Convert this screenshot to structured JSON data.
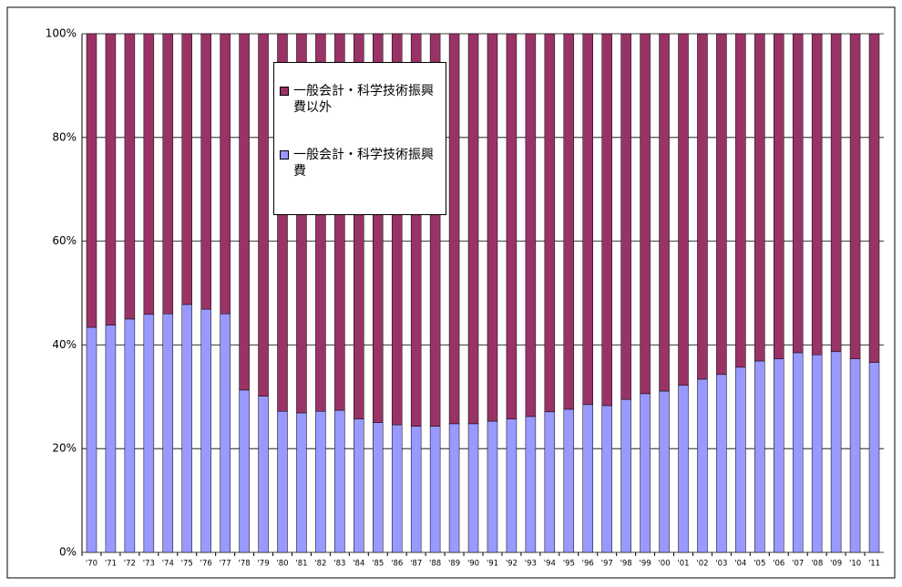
{
  "chart_data": {
    "type": "stacked-bar",
    "categories": [
      "'70",
      "'71",
      "'72",
      "'73",
      "'74",
      "'75",
      "'76",
      "'77",
      "'78",
      "'79",
      "'80",
      "'81",
      "'82",
      "'83",
      "'84",
      "'85",
      "'86",
      "'87",
      "'88",
      "'89",
      "'90",
      "'91",
      "'92",
      "'93",
      "'94",
      "'95",
      "'96",
      "'97",
      "'98",
      "'99",
      "'00",
      "'01",
      "'02",
      "'03",
      "'04",
      "'05",
      "'06",
      "'07",
      "'08",
      "'09",
      "'10",
      "'11"
    ],
    "series": [
      {
        "name": "一般会計・科学技術振興費",
        "color": "#9999ff",
        "values": [
          43.4,
          43.8,
          45.0,
          45.9,
          46.0,
          47.8,
          46.9,
          46.0,
          31.3,
          30.1,
          27.2,
          26.9,
          27.2,
          27.4,
          25.7,
          25.0,
          24.6,
          24.3,
          24.3,
          24.8,
          24.8,
          25.3,
          25.7,
          26.2,
          27.1,
          27.6,
          28.5,
          28.3,
          29.5,
          30.6,
          31.1,
          32.2,
          33.4,
          34.3,
          35.7,
          36.9,
          37.3,
          38.5,
          38.1,
          38.7,
          37.3,
          36.6
        ]
      },
      {
        "name": "一般会計・科学技術振興費以外",
        "color": "#993366",
        "values": [
          56.6,
          56.2,
          55.0,
          54.1,
          54.0,
          52.2,
          53.1,
          54.0,
          68.7,
          69.9,
          72.8,
          73.1,
          72.8,
          72.6,
          74.3,
          75.0,
          75.4,
          75.7,
          75.7,
          75.2,
          75.2,
          74.7,
          74.3,
          73.8,
          72.9,
          72.4,
          71.5,
          71.7,
          70.5,
          69.4,
          68.9,
          67.8,
          66.6,
          65.7,
          64.3,
          63.1,
          62.7,
          61.5,
          61.9,
          61.3,
          62.7,
          63.4
        ]
      }
    ],
    "ylim": [
      0,
      100
    ],
    "yticks": [
      {
        "value": 0,
        "label": "0%"
      },
      {
        "value": 20,
        "label": "20%"
      },
      {
        "value": 40,
        "label": "40%"
      },
      {
        "value": 60,
        "label": "60%"
      },
      {
        "value": 80,
        "label": "80%"
      },
      {
        "value": 100,
        "label": "100%"
      }
    ],
    "grid": true
  }
}
